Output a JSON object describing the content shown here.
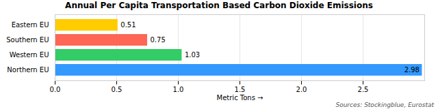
{
  "chart_data": {
    "type": "bar",
    "orientation": "horizontal",
    "title": "Annual Per Capita Transportation Based Carbon Dioxide Emissions",
    "categories": [
      "Eastern EU",
      "Southern EU",
      "Western EU",
      "Northern EU"
    ],
    "values": [
      0.51,
      0.75,
      1.03,
      2.98
    ],
    "colors": [
      "#FFCC00",
      "#FF6655",
      "#33CC66",
      "#3399FF"
    ],
    "xlabel": "Metric Tons",
    "xlim": [
      0,
      3.0
    ],
    "xticks": [
      {
        "value": 0,
        "label": "0.0"
      },
      0.5,
      {
        "value": 1,
        "label": "1.0"
      },
      1.5,
      {
        "value": 2,
        "label": "2.0"
      },
      2.5
    ],
    "grid": true,
    "data_labels": true,
    "caption": "Sources: Stockingblue, Eurostat"
  }
}
